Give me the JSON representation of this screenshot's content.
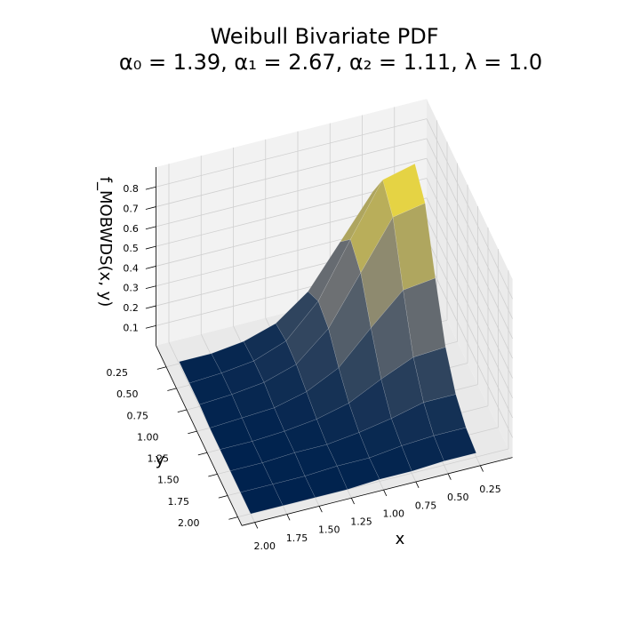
{
  "chart_data": {
    "type": "surface",
    "title": "Weibull Bivariate PDF",
    "subtitle": "α₀ = 1.39,  α₁ = 2.67,  α₂ = 1.11,  λ = 1.0",
    "xlabel": "x",
    "ylabel": "y",
    "zlabel": "f_MOBWDS(x, y)",
    "x": [
      0.25,
      0.5,
      0.75,
      1.0,
      1.25,
      1.5,
      1.75,
      2.0
    ],
    "y": [
      0.25,
      0.5,
      0.75,
      1.0,
      1.25,
      1.5,
      1.75,
      2.0
    ],
    "z": [
      [
        0.64,
        0.62,
        0.41,
        0.2,
        0.08,
        0.03,
        0.01,
        0.01
      ],
      [
        0.83,
        0.79,
        0.53,
        0.26,
        0.1,
        0.04,
        0.02,
        0.01
      ],
      [
        0.74,
        0.71,
        0.47,
        0.23,
        0.09,
        0.04,
        0.02,
        0.01
      ],
      [
        0.47,
        0.45,
        0.3,
        0.14,
        0.06,
        0.02,
        0.01,
        0
      ],
      [
        0.23,
        0.22,
        0.15,
        0.07,
        0.03,
        0.01,
        0,
        0
      ],
      [
        0.1,
        0.1,
        0.06,
        0.03,
        0.01,
        0.01,
        0,
        0
      ],
      [
        0.04,
        0.04,
        0.03,
        0.01,
        0.01,
        0,
        0,
        0
      ],
      [
        0.02,
        0.02,
        0.01,
        0.01,
        0,
        0,
        0,
        0
      ]
    ],
    "colormap": [
      "#00224e",
      "#7c7b78",
      "#fee838"
    ],
    "xlim": [
      0,
      2.1
    ],
    "ylim": [
      0,
      2.1
    ],
    "zlim": [
      0,
      0.9
    ],
    "xticks": [
      {
        "value": 0.25,
        "label": "0.25"
      },
      {
        "value": 0.5,
        "label": "0.50"
      },
      {
        "value": 0.75,
        "label": "0.75"
      },
      {
        "value": 1.0,
        "label": "1.00"
      },
      {
        "value": 1.25,
        "label": "1.25"
      },
      {
        "value": 1.5,
        "label": "1.50"
      },
      {
        "value": 1.75,
        "label": "1.75"
      },
      {
        "value": 2.0,
        "label": "2.00"
      }
    ],
    "yticks": [
      {
        "value": 0.25,
        "label": "0.25"
      },
      {
        "value": 0.5,
        "label": "0.50"
      },
      {
        "value": 0.75,
        "label": "0.75"
      },
      {
        "value": 1.0,
        "label": "1.00"
      },
      {
        "value": 1.25,
        "label": "1.25"
      },
      {
        "value": 1.5,
        "label": "1.50"
      },
      {
        "value": 1.75,
        "label": "1.75"
      },
      {
        "value": 2.0,
        "label": "2.00"
      }
    ],
    "zticks": [
      0.1,
      0.2,
      0.3,
      0.4,
      0.5,
      0.6,
      0.7,
      0.8
    ],
    "grid": true
  }
}
